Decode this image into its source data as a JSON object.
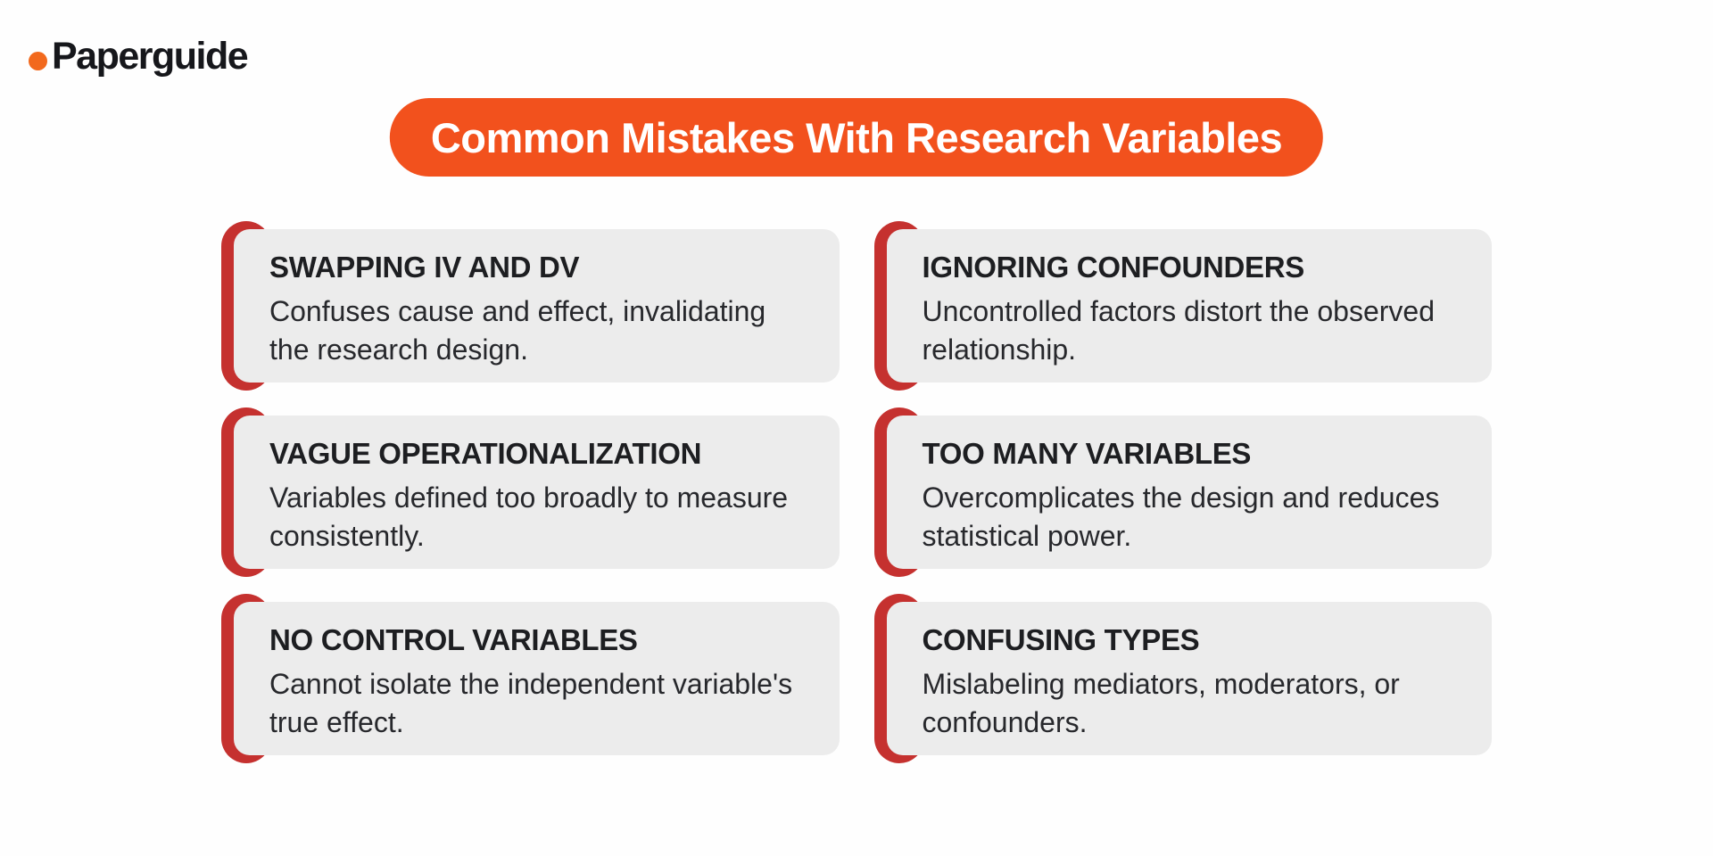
{
  "logo": {
    "text": "Paperguide",
    "dot_color": "#f2691d",
    "text_color": "#16171b"
  },
  "banner": {
    "title": "Common Mistakes With Research Variables",
    "bg_color": "#f2511d",
    "text_color": "#ffffff"
  },
  "colors": {
    "accent_red": "#c5312f",
    "card_bg": "#ececec",
    "page_bg": "#fefefe"
  },
  "cards": [
    {
      "title": "SWAPPING IV AND DV",
      "description": "Confuses cause and effect, invalidating the research design."
    },
    {
      "title": "IGNORING CONFOUNDERS",
      "description": "Uncontrolled factors distort the observed relationship."
    },
    {
      "title": "VAGUE OPERATIONALIZATION",
      "description": "Variables defined too broadly to measure consistently."
    },
    {
      "title": "TOO MANY VARIABLES",
      "description": "Overcomplicates the design and reduces statistical power."
    },
    {
      "title": "NO CONTROL VARIABLES",
      "description": "Cannot isolate the independent variable's true effect."
    },
    {
      "title": "CONFUSING TYPES",
      "description": "Mislabeling mediators, moderators, or confounders."
    }
  ]
}
